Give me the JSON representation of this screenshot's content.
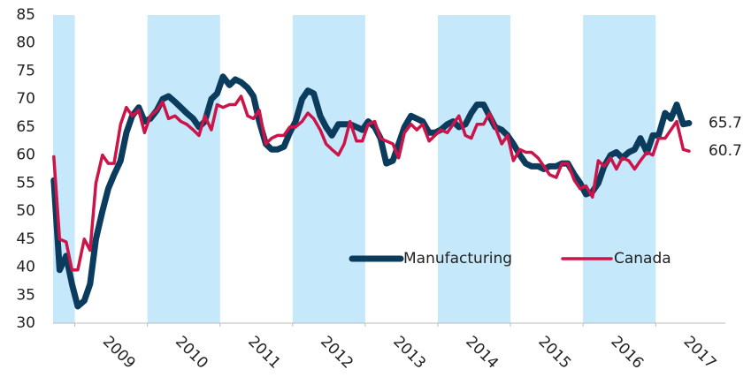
{
  "chart_data": {
    "type": "line",
    "x": [
      2008.71,
      2008.79,
      2008.88,
      2008.96,
      2009.04,
      2009.13,
      2009.21,
      2009.29,
      2009.38,
      2009.46,
      2009.54,
      2009.63,
      2009.71,
      2009.79,
      2009.88,
      2009.96,
      2010.04,
      2010.13,
      2010.21,
      2010.29,
      2010.38,
      2010.46,
      2010.54,
      2010.63,
      2010.71,
      2010.79,
      2010.88,
      2010.96,
      2011.04,
      2011.13,
      2011.21,
      2011.29,
      2011.38,
      2011.46,
      2011.54,
      2011.63,
      2011.71,
      2011.79,
      2011.88,
      2011.96,
      2012.04,
      2012.13,
      2012.21,
      2012.29,
      2012.38,
      2012.46,
      2012.54,
      2012.63,
      2012.71,
      2012.79,
      2012.88,
      2012.96,
      2013.04,
      2013.13,
      2013.21,
      2013.29,
      2013.38,
      2013.46,
      2013.54,
      2013.63,
      2013.71,
      2013.79,
      2013.88,
      2013.96,
      2014.04,
      2014.13,
      2014.21,
      2014.29,
      2014.38,
      2014.46,
      2014.54,
      2014.63,
      2014.71,
      2014.79,
      2014.88,
      2014.96,
      2015.04,
      2015.13,
      2015.21,
      2015.29,
      2015.38,
      2015.46,
      2015.54,
      2015.63,
      2015.71,
      2015.79,
      2015.88,
      2015.96,
      2016.04,
      2016.13,
      2016.21,
      2016.29,
      2016.38,
      2016.46,
      2016.54,
      2016.63,
      2016.71,
      2016.79,
      2016.88,
      2016.96,
      2017.04,
      2017.13,
      2017.21,
      2017.29,
      2017.38,
      2017.46
    ],
    "series": [
      {
        "name": "Manufacturing",
        "color": "#0b3c5d",
        "width": 7,
        "values": [
          55.5,
          39.5,
          42,
          37,
          33,
          34,
          37,
          45,
          50,
          54,
          56.5,
          59,
          64,
          67,
          68.5,
          66,
          66.5,
          68,
          70,
          70.5,
          69.5,
          68.5,
          67.5,
          66.5,
          65,
          66,
          70,
          71,
          74,
          72.5,
          73.5,
          73,
          72,
          70.5,
          66,
          62,
          61,
          61,
          61.5,
          64,
          66,
          70,
          71.5,
          71,
          67,
          65,
          63.5,
          65.5,
          65.5,
          65.5,
          65,
          64.5,
          66,
          65,
          63,
          58.5,
          59,
          62,
          65,
          67,
          66.5,
          66,
          64,
          64,
          64.5,
          65.5,
          66,
          65,
          65.5,
          67.5,
          69,
          69,
          67,
          65,
          64.5,
          63.5,
          62,
          60,
          58.5,
          58,
          58,
          57.5,
          58,
          58,
          58.5,
          58.5,
          56.5,
          55,
          53,
          53.5,
          55,
          58,
          60,
          60.5,
          59.5,
          60.5,
          61,
          63,
          60.5,
          63.5,
          63.5,
          67.5,
          66.5,
          69,
          65.5,
          65.7
        ]
      },
      {
        "name": "Canada",
        "color": "#cc1449",
        "width": 3.5,
        "values": [
          59.7,
          45,
          44.5,
          39.5,
          39.5,
          45,
          43,
          55,
          60,
          58.5,
          58.5,
          65.5,
          68.5,
          67,
          68,
          64,
          67,
          68,
          69.5,
          66.5,
          67,
          66,
          65.5,
          64.5,
          63.5,
          67,
          64.5,
          69,
          68.5,
          69,
          69,
          70.5,
          67,
          66.5,
          68,
          62,
          63,
          63.5,
          63.5,
          65,
          65,
          66,
          67.5,
          66.5,
          64.5,
          62,
          61,
          60,
          62,
          66,
          62.5,
          62.5,
          65.5,
          66,
          63,
          62.5,
          62,
          59.5,
          64,
          65.5,
          64.5,
          65.5,
          62.5,
          63.5,
          64.5,
          64,
          65.5,
          67,
          63.5,
          63,
          65.5,
          65.5,
          67.5,
          65,
          62,
          63.5,
          59,
          61,
          60.5,
          60.5,
          59.5,
          58,
          56.5,
          56,
          58.5,
          58.5,
          55.5,
          54,
          54.5,
          52.5,
          59,
          58,
          59.5,
          57.5,
          59.5,
          59,
          57.5,
          59,
          60.5,
          60,
          63,
          63,
          64.5,
          66,
          61,
          60.7
        ]
      }
    ],
    "xlim": [
      2008.7,
      2017.96
    ],
    "xticks": [
      2009,
      2010,
      2011,
      2012,
      2013,
      2014,
      2015,
      2016,
      2017
    ],
    "ylim": [
      30,
      85
    ],
    "yticks": [
      30,
      35,
      40,
      45,
      50,
      55,
      60,
      65,
      70,
      75,
      80,
      85
    ],
    "shaded_years": [
      2008,
      2010,
      2012,
      2014,
      2016
    ],
    "shade_color": "#c5e8fb",
    "grid": false,
    "legend": "lower center"
  }
}
